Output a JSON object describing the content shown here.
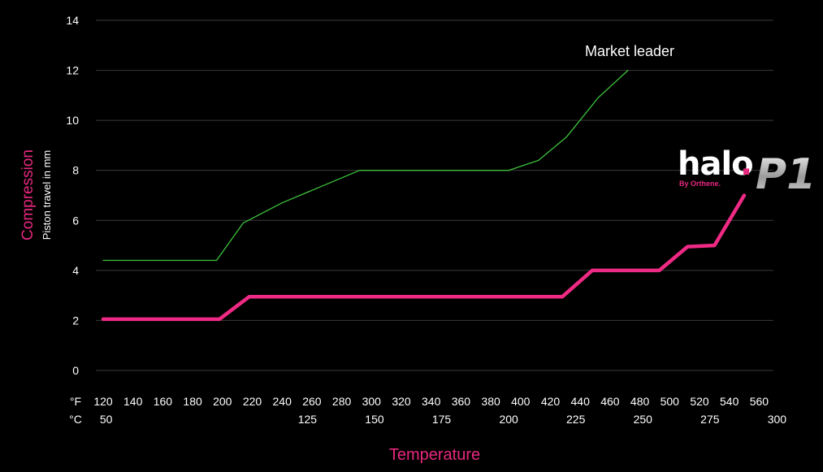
{
  "chart_data": {
    "type": "line",
    "xlabel": "Temperature",
    "ylabel": "Compression",
    "ylabel_sub": "Piston travel in mm",
    "ylim": [
      0,
      14
    ],
    "yticks": [
      0,
      2,
      4,
      6,
      8,
      10,
      12,
      14
    ],
    "xlim": [
      120,
      560
    ],
    "x_unit_f": "°F",
    "x_unit_c": "°C",
    "xticks_f": [
      120,
      140,
      160,
      180,
      200,
      220,
      240,
      260,
      280,
      300,
      320,
      340,
      360,
      380,
      400,
      420,
      440,
      460,
      480,
      500,
      520,
      540,
      560
    ],
    "xticks_c": [
      {
        "label": "50",
        "f": 122
      },
      {
        "label": "125",
        "f": 257
      },
      {
        "label": "150",
        "f": 302
      },
      {
        "label": "175",
        "f": 347
      },
      {
        "label": "200",
        "f": 392
      },
      {
        "label": "225",
        "f": 437
      },
      {
        "label": "250",
        "f": 482
      },
      {
        "label": "275",
        "f": 527
      },
      {
        "label": "300",
        "f": 572
      }
    ],
    "grid": true,
    "series": [
      {
        "name": "Market leader",
        "color": "#3cc23c",
        "points": [
          [
            120,
            4.4
          ],
          [
            196,
            4.4
          ],
          [
            214,
            5.9
          ],
          [
            240,
            6.7
          ],
          [
            292,
            8.0
          ],
          [
            392,
            8.0
          ],
          [
            412,
            8.4
          ],
          [
            431,
            9.35
          ],
          [
            452,
            10.9
          ],
          [
            472,
            12.0
          ]
        ]
      },
      {
        "name": "halo P1",
        "color": "#ee2a84",
        "points": [
          [
            120,
            2.05
          ],
          [
            198,
            2.05
          ],
          [
            218,
            2.95
          ],
          [
            428,
            2.95
          ],
          [
            448,
            4.0
          ],
          [
            493,
            4.0
          ],
          [
            512,
            4.95
          ],
          [
            530,
            5.0
          ],
          [
            550,
            7.0
          ]
        ]
      }
    ]
  },
  "logo": {
    "word": "halo",
    "dot": ".",
    "byline": "By Orthene.",
    "model": "P1",
    "brand_color": "#e8287f"
  }
}
